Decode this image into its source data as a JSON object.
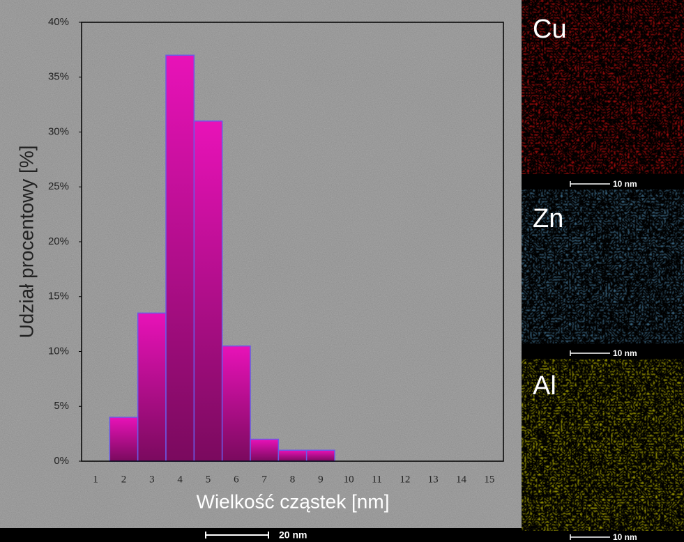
{
  "chart_data": {
    "type": "bar",
    "x_label": "Wielkość cząstek [nm]",
    "y_label": "Udział procentowy  [%]",
    "categories": [
      "1",
      "2",
      "3",
      "4",
      "5",
      "6",
      "7",
      "8",
      "9",
      "10",
      "11",
      "12",
      "13",
      "14",
      "15"
    ],
    "values": [
      0,
      4,
      13.5,
      37,
      31,
      10.5,
      2,
      1,
      1,
      0,
      0,
      0,
      0,
      0,
      0
    ],
    "color": "#d80fa8",
    "ylim": [
      0,
      40
    ],
    "yticks": [
      {
        "value": 0,
        "label": "0%"
      },
      {
        "value": 5,
        "label": "5%"
      },
      {
        "value": 10,
        "label": "10%"
      },
      {
        "value": 15,
        "label": "15%"
      },
      {
        "value": 20,
        "label": "20%"
      },
      {
        "value": 25,
        "label": "25%"
      },
      {
        "value": 30,
        "label": "30%"
      },
      {
        "value": 35,
        "label": "35%"
      },
      {
        "value": 40,
        "label": "40%"
      }
    ],
    "element_maps": [
      "Cu",
      "Zn",
      "Al"
    ],
    "scale_bars": [
      "20 nm",
      "10 nm",
      "10 nm",
      "10 nm"
    ]
  }
}
